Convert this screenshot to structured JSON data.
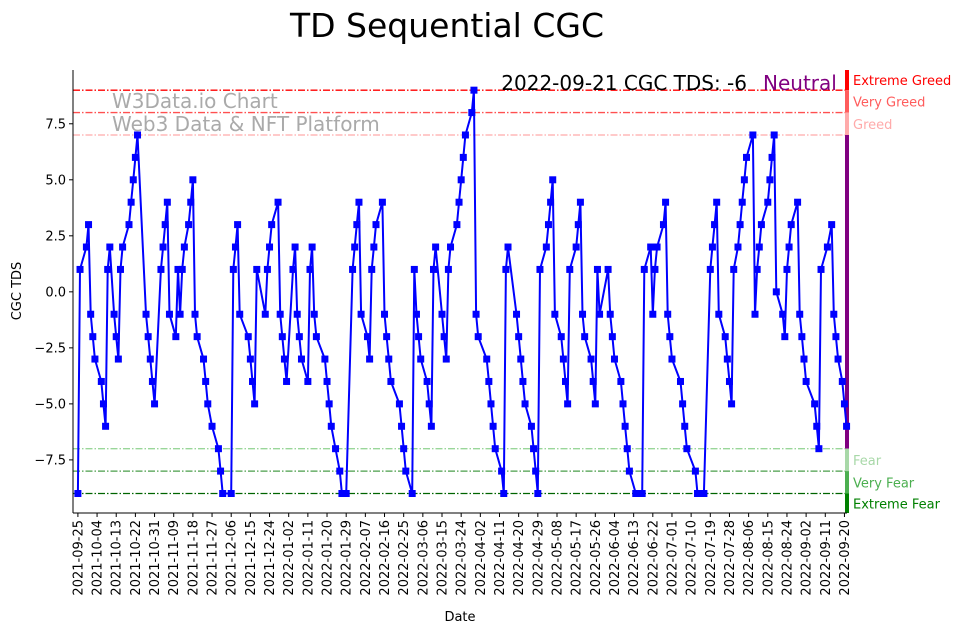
{
  "chart_data": {
    "type": "line",
    "title": "TD Sequential CGC",
    "xlabel": "Date",
    "ylabel": "CGC TDS",
    "start_date": "2021-09-25",
    "x_unit": "days since start_date",
    "xlim": [
      -2.3,
      361.2
    ],
    "ylim": [
      -9.87,
      9.9
    ],
    "yticks": [
      -7.5,
      -5.0,
      -2.5,
      0.0,
      2.5,
      5.0,
      7.5
    ],
    "ytick_labels": [
      "−7.5",
      "−5.0",
      "−2.5",
      "0.0",
      "2.5",
      "5.0",
      "7.5"
    ],
    "xtick_labels": [
      "2021-09-25",
      "2021-10-04",
      "2021-10-13",
      "2021-10-22",
      "2021-10-31",
      "2021-11-09",
      "2021-11-18",
      "2021-11-27",
      "2021-12-06",
      "2021-12-15",
      "2021-12-24",
      "2022-01-02",
      "2022-01-11",
      "2022-01-20",
      "2022-01-29",
      "2022-02-07",
      "2022-02-16",
      "2022-02-25",
      "2022-03-06",
      "2022-03-15",
      "2022-03-24",
      "2022-04-02",
      "2022-04-11",
      "2022-04-20",
      "2022-04-29",
      "2022-05-08",
      "2022-05-17",
      "2022-05-26",
      "2022-06-04",
      "2022-06-13",
      "2022-06-22",
      "2022-07-01",
      "2022-07-10",
      "2022-07-19",
      "2022-07-28",
      "2022-08-06",
      "2022-08-15",
      "2022-08-24",
      "2022-09-02",
      "2022-09-11",
      "2022-09-20"
    ],
    "xtick_step_days": 9,
    "series": [
      {
        "name": "CGC TDS",
        "color": "#0000ff",
        "points": [
          [
            0,
            -9
          ],
          [
            1,
            1
          ],
          [
            4,
            2
          ],
          [
            5,
            3
          ],
          [
            6,
            -1
          ],
          [
            7,
            -2
          ],
          [
            8,
            -3
          ],
          [
            11,
            -4
          ],
          [
            12,
            -5
          ],
          [
            13,
            -6
          ],
          [
            14,
            1
          ],
          [
            15,
            2
          ],
          [
            17,
            -1
          ],
          [
            18,
            -2
          ],
          [
            19,
            -3
          ],
          [
            20,
            1
          ],
          [
            21,
            2
          ],
          [
            24,
            3
          ],
          [
            25,
            4
          ],
          [
            26,
            5
          ],
          [
            27,
            6
          ],
          [
            28,
            7
          ],
          [
            32,
            -1
          ],
          [
            33,
            -2
          ],
          [
            34,
            -3
          ],
          [
            35,
            -4
          ],
          [
            36,
            -5
          ],
          [
            39,
            1
          ],
          [
            40,
            2
          ],
          [
            41,
            3
          ],
          [
            42,
            4
          ],
          [
            43,
            -1
          ],
          [
            46,
            -2
          ],
          [
            47,
            1
          ],
          [
            48,
            -1
          ],
          [
            49,
            1
          ],
          [
            50,
            2
          ],
          [
            52,
            3
          ],
          [
            53,
            4
          ],
          [
            54,
            5
          ],
          [
            55,
            -1
          ],
          [
            56,
            -2
          ],
          [
            59,
            -3
          ],
          [
            60,
            -4
          ],
          [
            61,
            -5
          ],
          [
            63,
            -6
          ],
          [
            66,
            -7
          ],
          [
            67,
            -8
          ],
          [
            68,
            -9
          ],
          [
            72,
            -9
          ],
          [
            73,
            1
          ],
          [
            74,
            2
          ],
          [
            75,
            3
          ],
          [
            76,
            -1
          ],
          [
            80,
            -2
          ],
          [
            81,
            -3
          ],
          [
            82,
            -4
          ],
          [
            83,
            -5
          ],
          [
            84,
            1
          ],
          [
            88,
            -1
          ],
          [
            89,
            1
          ],
          [
            90,
            2
          ],
          [
            91,
            3
          ],
          [
            94,
            4
          ],
          [
            95,
            -1
          ],
          [
            96,
            -2
          ],
          [
            97,
            -3
          ],
          [
            98,
            -4
          ],
          [
            101,
            1
          ],
          [
            102,
            2
          ],
          [
            103,
            -1
          ],
          [
            104,
            -2
          ],
          [
            105,
            -3
          ],
          [
            108,
            -4
          ],
          [
            109,
            1
          ],
          [
            110,
            2
          ],
          [
            111,
            -1
          ],
          [
            112,
            -2
          ],
          [
            116,
            -3
          ],
          [
            117,
            -4
          ],
          [
            118,
            -5
          ],
          [
            119,
            -6
          ],
          [
            121,
            -7
          ],
          [
            123,
            -8
          ],
          [
            124,
            -9
          ],
          [
            126,
            -9
          ],
          [
            129,
            1
          ],
          [
            130,
            2
          ],
          [
            131,
            3
          ],
          [
            132,
            4
          ],
          [
            133,
            -1
          ],
          [
            136,
            -2
          ],
          [
            137,
            -3
          ],
          [
            138,
            1
          ],
          [
            139,
            2
          ],
          [
            140,
            3
          ],
          [
            143,
            4
          ],
          [
            144,
            -1
          ],
          [
            145,
            -2
          ],
          [
            146,
            -3
          ],
          [
            147,
            -4
          ],
          [
            151,
            -5
          ],
          [
            152,
            -6
          ],
          [
            153,
            -7
          ],
          [
            154,
            -8
          ],
          [
            157,
            -9
          ],
          [
            158,
            1
          ],
          [
            159,
            -1
          ],
          [
            160,
            -2
          ],
          [
            161,
            -3
          ],
          [
            164,
            -4
          ],
          [
            165,
            -5
          ],
          [
            166,
            -6
          ],
          [
            167,
            1
          ],
          [
            168,
            2
          ],
          [
            171,
            -1
          ],
          [
            172,
            -2
          ],
          [
            173,
            -3
          ],
          [
            174,
            1
          ],
          [
            175,
            2
          ],
          [
            178,
            3
          ],
          [
            179,
            4
          ],
          [
            180,
            5
          ],
          [
            181,
            6
          ],
          [
            182,
            7
          ],
          [
            185,
            8
          ],
          [
            186,
            9
          ],
          [
            187,
            -1
          ],
          [
            188,
            -2
          ],
          [
            192,
            -3
          ],
          [
            193,
            -4
          ],
          [
            194,
            -5
          ],
          [
            195,
            -6
          ],
          [
            196,
            -7
          ],
          [
            199,
            -8
          ],
          [
            200,
            -9
          ],
          [
            201,
            1
          ],
          [
            202,
            2
          ],
          [
            206,
            -1
          ],
          [
            207,
            -2
          ],
          [
            208,
            -3
          ],
          [
            209,
            -4
          ],
          [
            210,
            -5
          ],
          [
            213,
            -6
          ],
          [
            214,
            -7
          ],
          [
            215,
            -8
          ],
          [
            216,
            -9
          ],
          [
            217,
            1
          ],
          [
            220,
            2
          ],
          [
            221,
            3
          ],
          [
            222,
            4
          ],
          [
            223,
            5
          ],
          [
            224,
            -1
          ],
          [
            227,
            -2
          ],
          [
            228,
            -3
          ],
          [
            229,
            -4
          ],
          [
            230,
            -5
          ],
          [
            231,
            1
          ],
          [
            234,
            2
          ],
          [
            235,
            3
          ],
          [
            236,
            4
          ],
          [
            237,
            -1
          ],
          [
            238,
            -2
          ],
          [
            241,
            -3
          ],
          [
            242,
            -4
          ],
          [
            243,
            -5
          ],
          [
            244,
            1
          ],
          [
            245,
            -1
          ],
          [
            249,
            1
          ],
          [
            250,
            -1
          ],
          [
            251,
            -2
          ],
          [
            252,
            -3
          ],
          [
            255,
            -4
          ],
          [
            256,
            -5
          ],
          [
            257,
            -6
          ],
          [
            258,
            -7
          ],
          [
            259,
            -8
          ],
          [
            262,
            -9
          ],
          [
            265,
            -9
          ],
          [
            266,
            1
          ],
          [
            269,
            2
          ],
          [
            270,
            -1
          ],
          [
            271,
            1
          ],
          [
            272,
            2
          ],
          [
            275,
            3
          ],
          [
            276,
            4
          ],
          [
            277,
            -1
          ],
          [
            278,
            -2
          ],
          [
            279,
            -3
          ],
          [
            283,
            -4
          ],
          [
            284,
            -5
          ],
          [
            285,
            -6
          ],
          [
            286,
            -7
          ],
          [
            290,
            -8
          ],
          [
            291,
            -9
          ],
          [
            294,
            -9
          ],
          [
            297,
            1
          ],
          [
            298,
            2
          ],
          [
            299,
            3
          ],
          [
            300,
            4
          ],
          [
            301,
            -1
          ],
          [
            304,
            -2
          ],
          [
            305,
            -3
          ],
          [
            306,
            -4
          ],
          [
            307,
            -5
          ],
          [
            308,
            1
          ],
          [
            310,
            2
          ],
          [
            311,
            3
          ],
          [
            312,
            4
          ],
          [
            313,
            5
          ],
          [
            314,
            6
          ],
          [
            317,
            7
          ],
          [
            318,
            -1
          ],
          [
            319,
            1
          ],
          [
            320,
            2
          ],
          [
            321,
            3
          ],
          [
            324,
            4
          ],
          [
            325,
            5
          ],
          [
            326,
            6
          ],
          [
            327,
            7
          ],
          [
            328,
            0
          ],
          [
            331,
            -1
          ],
          [
            332,
            -2
          ],
          [
            333,
            1
          ],
          [
            334,
            2
          ],
          [
            335,
            3
          ],
          [
            338,
            4
          ],
          [
            339,
            -1
          ],
          [
            340,
            -2
          ],
          [
            341,
            -3
          ],
          [
            342,
            -4
          ],
          [
            346,
            -5
          ],
          [
            347,
            -6
          ],
          [
            348,
            -7
          ],
          [
            349,
            1
          ],
          [
            352,
            2
          ],
          [
            354,
            3
          ],
          [
            355,
            -1
          ],
          [
            356,
            -2
          ],
          [
            357,
            -3
          ],
          [
            359,
            -4
          ],
          [
            360,
            -5
          ],
          [
            361,
            -6
          ]
        ]
      }
    ],
    "reference_lines": [
      {
        "value": 9,
        "color": "#ff0000"
      },
      {
        "value": 8,
        "color": "#ff5050"
      },
      {
        "value": 7,
        "color": "#ffaaaa"
      },
      {
        "value": -7,
        "color": "#99d699"
      },
      {
        "value": -8,
        "color": "#4a9e4a"
      },
      {
        "value": -9,
        "color": "#006400"
      }
    ],
    "zones": [
      {
        "label": "Extreme Greed",
        "from": 9,
        "to": 9.9,
        "color": "#ff0000",
        "label_value": 9.45
      },
      {
        "label": "Very Greed",
        "from": 8,
        "to": 9,
        "color": "#ff5c5c",
        "label_value": 8.5
      },
      {
        "label": "Greed",
        "from": 7,
        "to": 8,
        "color": "#ffaaaa",
        "label_value": 7.5
      },
      {
        "label": "Neutral",
        "from": -7,
        "to": 7,
        "color": "#800080",
        "label_value": null
      },
      {
        "label": "Fear",
        "from": -8,
        "to": -7,
        "color": "#a8d8a8",
        "label_value": -7.5
      },
      {
        "label": "Very Fear",
        "from": -9,
        "to": -8,
        "color": "#4caf50",
        "label_value": -8.5
      },
      {
        "label": "Extreme Fear",
        "from": -9.87,
        "to": -9,
        "color": "#008000",
        "label_value": -9.45
      }
    ],
    "annotation": {
      "text": "2022-09-21 CGC TDS: -6",
      "status": "Neutral",
      "status_color": "#800080"
    },
    "watermark": {
      "line1": "W3Data.io Chart",
      "line2": "Web3 Data & NFT Platform"
    }
  }
}
